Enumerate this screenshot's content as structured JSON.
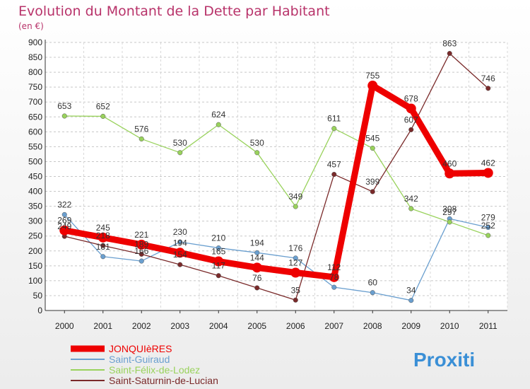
{
  "title": "Evolution du Montant de la Dette par Habitant",
  "subtitle": "(en €)",
  "logo_text": "Proxiti",
  "chart_data": {
    "type": "line",
    "x": [
      "2000",
      "2001",
      "2002",
      "2003",
      "2004",
      "2005",
      "2006",
      "2007",
      "2008",
      "2009",
      "2010",
      "2011"
    ],
    "ylim": [
      0,
      900
    ],
    "yticks": [
      0,
      50,
      100,
      150,
      200,
      250,
      300,
      350,
      400,
      450,
      500,
      550,
      600,
      650,
      700,
      750,
      800,
      850,
      900
    ],
    "grid": true,
    "legend_position": "bottom-left",
    "series": [
      {
        "name": "JONQUIèRES",
        "color": "#ee0000",
        "values": [
          269,
          245,
          221,
          194,
          165,
          144,
          127,
          112,
          755,
          678,
          460,
          462
        ]
      },
      {
        "name": "Saint-Guiraud",
        "color": "#6a9fcf",
        "values": [
          322,
          181,
          166,
          230,
          210,
          194,
          176,
          78,
          60,
          34,
          308,
          279
        ]
      },
      {
        "name": "Saint-Félix-de-Lodez",
        "color": "#99d25c",
        "values": [
          653,
          652,
          576,
          530,
          624,
          530,
          349,
          611,
          545,
          342,
          297,
          252
        ]
      },
      {
        "name": "Saint-Saturnin-de-Lucian",
        "color": "#7a2a2a",
        "values": [
          249,
          218,
          189,
          154,
          117,
          76,
          35,
          457,
          399,
          607,
          863,
          746
        ]
      }
    ]
  }
}
